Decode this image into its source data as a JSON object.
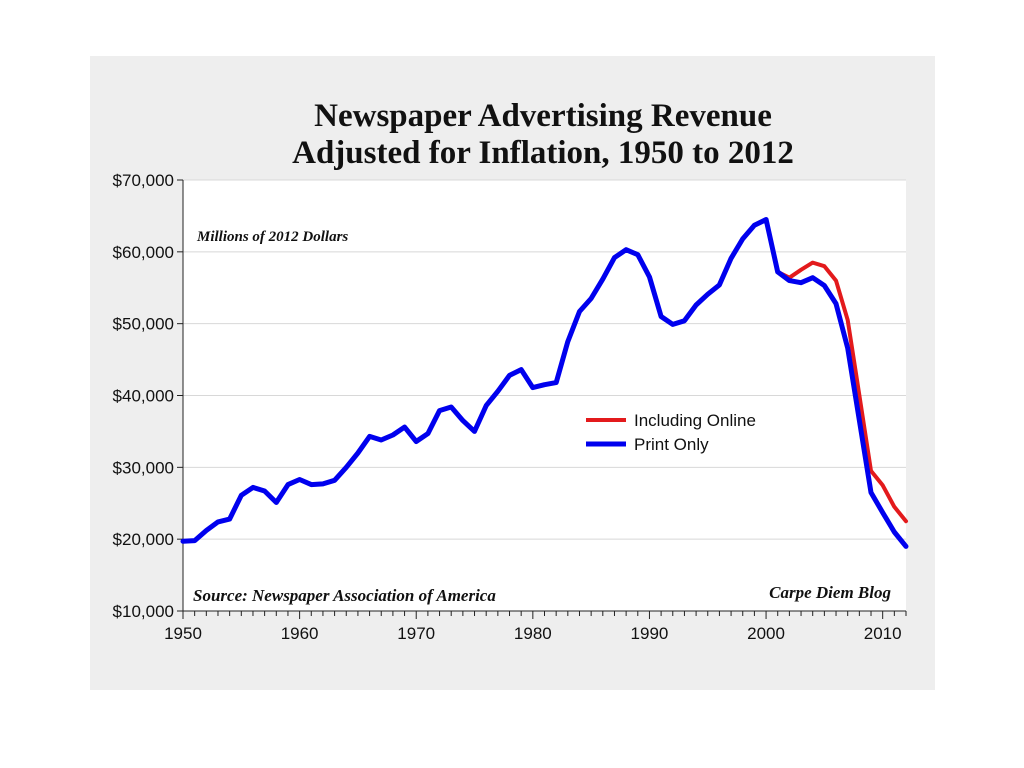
{
  "chart_data": {
    "type": "line",
    "title_lines": [
      "Newspaper Advertising Revenue",
      "Adjusted for Inflation, 1950 to 2012"
    ],
    "units_note": "Millions of 2012 Dollars",
    "source_note": "Source: Newspaper Association of America",
    "credit_note": "Carpe Diem Blog",
    "xlim": [
      1950,
      2012
    ],
    "ylim": [
      10000,
      70000
    ],
    "x_ticks": [
      1950,
      1960,
      1970,
      1980,
      1990,
      2000,
      2010
    ],
    "y_ticks": [
      10000,
      20000,
      30000,
      40000,
      50000,
      60000,
      70000
    ],
    "y_tick_labels": [
      "$10,000",
      "$20,000",
      "$30,000",
      "$40,000",
      "$50,000",
      "$60,000",
      "$70,000"
    ],
    "grid": true,
    "legend_position": "center-right",
    "series": [
      {
        "name": "Including Online",
        "color": "#e31a1c",
        "x": [
          2000,
          2001,
          2002,
          2003,
          2004,
          2005,
          2006,
          2007,
          2008,
          2009,
          2010,
          2011,
          2012
        ],
        "values": [
          64500,
          57200,
          56400,
          57500,
          58500,
          58000,
          56000,
          50500,
          40000,
          29500,
          27500,
          24500,
          22500
        ]
      },
      {
        "name": "Print Only",
        "color": "#0000ee",
        "x": [
          1950,
          1951,
          1952,
          1953,
          1954,
          1955,
          1956,
          1957,
          1958,
          1959,
          1960,
          1961,
          1962,
          1963,
          1964,
          1965,
          1966,
          1967,
          1968,
          1969,
          1970,
          1971,
          1972,
          1973,
          1974,
          1975,
          1976,
          1977,
          1978,
          1979,
          1980,
          1981,
          1982,
          1983,
          1984,
          1985,
          1986,
          1987,
          1988,
          1989,
          1990,
          1991,
          1992,
          1993,
          1994,
          1995,
          1996,
          1997,
          1998,
          1999,
          2000,
          2001,
          2002,
          2003,
          2004,
          2005,
          2006,
          2007,
          2008,
          2009,
          2010,
          2011,
          2012
        ],
        "values": [
          19700,
          19800,
          21200,
          22400,
          22800,
          26100,
          27200,
          26700,
          25100,
          27600,
          28300,
          27600,
          27700,
          28200,
          30000,
          32000,
          34300,
          33800,
          34500,
          35600,
          33600,
          34700,
          37900,
          38400,
          36500,
          35000,
          38600,
          40600,
          42800,
          43600,
          41100,
          41500,
          41800,
          47500,
          51700,
          53500,
          56200,
          59200,
          60300,
          59600,
          56500,
          51000,
          49900,
          50400,
          52600,
          54100,
          55400,
          59100,
          61800,
          63700,
          64500,
          57200,
          56000,
          55700,
          56400,
          55300,
          52800,
          46600,
          36500,
          26500,
          23700,
          21000,
          19000
        ]
      }
    ]
  }
}
